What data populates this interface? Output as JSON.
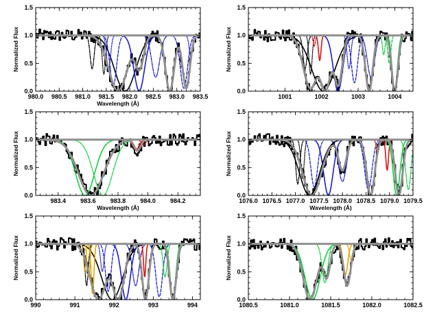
{
  "chart_data": [
    {
      "type": "line",
      "panel": "top-left",
      "xlim": [
        980.0,
        983.5
      ],
      "ylim": [
        0.0,
        1.5
      ],
      "xticks": [
        980.0,
        980.5,
        981.0,
        981.5,
        982.0,
        982.5,
        983.0,
        983.5
      ],
      "xtick_labels": [
        "980.0",
        "980.5",
        "981.0",
        "981.5",
        "982.0",
        "982.5",
        "983.0",
        "983.5"
      ],
      "yticks": [
        0.0,
        0.5,
        1.0,
        1.5
      ],
      "ytick_labels": [
        "0.0",
        "0.5",
        "1.0",
        "1.5"
      ],
      "xlabel": "Wavelength (Å)",
      "ylabel": "Normalized Flux",
      "continuum": 1.0,
      "colors": {
        "data": "#000000",
        "model": "#909090",
        "blue": "#1a1ad0",
        "black": "#000000"
      },
      "components": [
        {
          "color": "#000000",
          "style": "solid",
          "center": 981.9,
          "depth": 1.0,
          "width": 0.32
        },
        {
          "color": "#000000",
          "style": "dashdot",
          "center": 981.2,
          "depth": 0.6,
          "width": 0.06
        },
        {
          "color": "#000000",
          "style": "dotted",
          "center": 981.45,
          "depth": 0.7,
          "width": 0.05
        },
        {
          "color": "#1a1ad0",
          "style": "solid",
          "center": 982.2,
          "depth": 1.0,
          "width": 0.16
        },
        {
          "color": "#1a1ad0",
          "style": "dashed",
          "center": 981.65,
          "depth": 0.9,
          "width": 0.1
        },
        {
          "color": "#1a1ad0",
          "style": "dotted",
          "center": 981.55,
          "depth": 0.6,
          "width": 0.06
        },
        {
          "color": "#1a1ad0",
          "style": "dashdot",
          "center": 982.55,
          "depth": 0.75,
          "width": 0.12
        },
        {
          "color": "#1a1ad0",
          "style": "dashed",
          "center": 983.15,
          "depth": 0.95,
          "width": 0.11
        },
        {
          "color": "#1a1ad0",
          "style": "dotted",
          "center": 983.3,
          "depth": 0.4,
          "width": 0.05
        }
      ],
      "model_regions": [
        {
          "center": 981.75,
          "depth": 1.0,
          "width": 0.28
        },
        {
          "center": 982.2,
          "depth": 0.6,
          "width": 0.13
        },
        {
          "center": 982.85,
          "depth": 1.0,
          "width": 0.13
        },
        {
          "center": 983.2,
          "depth": 0.95,
          "width": 0.11
        }
      ]
    },
    {
      "type": "line",
      "panel": "top-right",
      "xlim": [
        1000.0,
        1004.5
      ],
      "ylim": [
        0.0,
        1.5
      ],
      "xticks": [
        1001,
        1002,
        1003,
        1004
      ],
      "xtick_labels": [
        "1001",
        "1002",
        "1003",
        "1004"
      ],
      "yticks": [
        0.0,
        0.5,
        1.0,
        1.5
      ],
      "ytick_labels": [
        "0.0",
        "0.5",
        "1.0",
        "1.5"
      ],
      "xlabel": "Wavelength (Å)",
      "ylabel": "Normalized Flux",
      "continuum": 1.0,
      "colors": {
        "data": "#000000",
        "model": "#909090",
        "blue": "#1a1ad0",
        "red": "#e01010",
        "green": "#10d040",
        "black": "#000000"
      },
      "components": [
        {
          "color": "#000000",
          "style": "solid",
          "center": 1002.05,
          "depth": 1.0,
          "width": 0.45
        },
        {
          "color": "#000000",
          "style": "dashdot",
          "center": 1001.55,
          "depth": 0.6,
          "width": 0.08
        },
        {
          "color": "#000000",
          "style": "dotted",
          "center": 1001.7,
          "depth": 0.7,
          "width": 0.06
        },
        {
          "color": "#e01010",
          "style": "solid",
          "center": 1001.95,
          "depth": 0.45,
          "width": 0.05
        },
        {
          "color": "#e01010",
          "style": "dashdot",
          "center": 1001.8,
          "depth": 0.2,
          "width": 0.04
        },
        {
          "color": "#1a1ad0",
          "style": "solid",
          "center": 1002.45,
          "depth": 1.0,
          "width": 0.18
        },
        {
          "color": "#1a1ad0",
          "style": "dashed",
          "center": 1002.9,
          "depth": 0.85,
          "width": 0.12
        },
        {
          "color": "#1a1ad0",
          "style": "dotted",
          "center": 1002.75,
          "depth": 0.6,
          "width": 0.07
        },
        {
          "color": "#1a1ad0",
          "style": "dashdot",
          "center": 1003.35,
          "depth": 0.75,
          "width": 0.14
        },
        {
          "color": "#10d040",
          "style": "solid",
          "center": 1004.0,
          "depth": 1.0,
          "width": 0.1
        },
        {
          "color": "#10d040",
          "style": "dashed",
          "center": 1003.85,
          "depth": 0.5,
          "width": 0.06
        },
        {
          "color": "#10d040",
          "style": "dashdot",
          "center": 1003.7,
          "depth": 0.35,
          "width": 0.05
        }
      ],
      "model_regions": [
        {
          "center": 1001.7,
          "depth": 0.95,
          "width": 0.28
        },
        {
          "center": 1002.1,
          "depth": 1.0,
          "width": 0.22
        },
        {
          "center": 1002.45,
          "depth": 0.9,
          "width": 0.16
        },
        {
          "center": 1003.3,
          "depth": 1.0,
          "width": 0.14
        },
        {
          "center": 1004.0,
          "depth": 1.0,
          "width": 0.12
        }
      ]
    },
    {
      "type": "line",
      "panel": "middle-left",
      "xlim": [
        983.25,
        984.35
      ],
      "ylim": [
        0.0,
        1.5
      ],
      "xticks": [
        983.4,
        983.6,
        983.8,
        984.0,
        984.2
      ],
      "xtick_labels": [
        "983.4",
        "983.6",
        "983.8",
        "984.0",
        "984.2"
      ],
      "yticks": [
        0.0,
        0.5,
        1.0,
        1.5
      ],
      "ytick_labels": [
        "0.0",
        "0.5",
        "1.0",
        "1.5"
      ],
      "xlabel": "Wavelength (Å)",
      "ylabel": "Normalized Flux",
      "continuum": 1.0,
      "colors": {
        "data": "#000000",
        "model": "#909090",
        "green": "#10d040",
        "red": "#e01010"
      },
      "components": [
        {
          "color": "#10d040",
          "style": "solid",
          "center": 983.58,
          "depth": 1.0,
          "width": 0.09
        },
        {
          "color": "#10d040",
          "style": "dashdot",
          "center": 983.7,
          "depth": 1.0,
          "width": 0.09
        },
        {
          "color": "#e01010",
          "style": "solid",
          "center": 983.92,
          "depth": 0.18,
          "width": 0.03
        },
        {
          "color": "#e01010",
          "style": "dashdot",
          "center": 983.97,
          "depth": 0.1,
          "width": 0.02
        }
      ],
      "model_regions": [
        {
          "center": 983.62,
          "depth": 1.0,
          "width": 0.12
        },
        {
          "center": 983.93,
          "depth": 0.2,
          "width": 0.03
        }
      ]
    },
    {
      "type": "line",
      "panel": "middle-right",
      "xlim": [
        1076.0,
        1079.5
      ],
      "ylim": [
        0.0,
        1.5
      ],
      "xticks": [
        1076.0,
        1076.5,
        1077.0,
        1077.5,
        1078.0,
        1078.5,
        1079.0,
        1079.5
      ],
      "xtick_labels": [
        "1076.0",
        "1076.5",
        "1077.0",
        "1077.5",
        "1078.0",
        "1078.5",
        "1079.0",
        "1079.5"
      ],
      "yticks": [
        0.0,
        0.5,
        1.0,
        1.5
      ],
      "ytick_labels": [
        "0.0",
        "0.5",
        "1.0",
        "1.5"
      ],
      "xlabel": "Wavelength (Å)",
      "ylabel": "Normalized Flux",
      "continuum": 1.0,
      "colors": {
        "data": "#000000",
        "model": "#909090",
        "blue": "#1a1ad0",
        "red": "#e01010",
        "green": "#10d040",
        "black": "#000000"
      },
      "components": [
        {
          "color": "#000000",
          "style": "solid",
          "center": 1077.3,
          "depth": 1.0,
          "width": 0.3
        },
        {
          "color": "#000000",
          "style": "dashdot",
          "center": 1077.05,
          "depth": 0.8,
          "width": 0.06
        },
        {
          "color": "#000000",
          "style": "dotted",
          "center": 1077.15,
          "depth": 0.7,
          "width": 0.05
        },
        {
          "color": "#1a1ad0",
          "style": "solid",
          "center": 1077.7,
          "depth": 1.0,
          "width": 0.14
        },
        {
          "color": "#1a1ad0",
          "style": "dashed",
          "center": 1077.4,
          "depth": 0.85,
          "width": 0.1
        },
        {
          "color": "#1a1ad0",
          "style": "dashdot",
          "center": 1078.0,
          "depth": 0.75,
          "width": 0.12
        },
        {
          "color": "#1a1ad0",
          "style": "dashed",
          "center": 1078.55,
          "depth": 0.9,
          "width": 0.11
        },
        {
          "color": "#e01010",
          "style": "solid",
          "center": 1078.95,
          "depth": 0.55,
          "width": 0.04
        },
        {
          "color": "#e01010",
          "style": "dashdot",
          "center": 1078.75,
          "depth": 0.25,
          "width": 0.04
        },
        {
          "color": "#10d040",
          "style": "solid",
          "center": 1079.15,
          "depth": 1.0,
          "width": 0.1
        },
        {
          "color": "#10d040",
          "style": "dashdot",
          "center": 1079.4,
          "depth": 0.9,
          "width": 0.08
        }
      ],
      "model_regions": [
        {
          "center": 1077.35,
          "depth": 1.0,
          "width": 0.28
        },
        {
          "center": 1078.0,
          "depth": 0.55,
          "width": 0.12
        },
        {
          "center": 1078.6,
          "depth": 1.0,
          "width": 0.12
        },
        {
          "center": 1079.2,
          "depth": 1.0,
          "width": 0.11
        }
      ]
    },
    {
      "type": "line",
      "panel": "bottom-left",
      "xlim": [
        990.0,
        994.2
      ],
      "ylim": [
        0.0,
        1.5
      ],
      "xticks": [
        990,
        991,
        992,
        993,
        994
      ],
      "xtick_labels": [
        "990",
        "991",
        "992",
        "993",
        "994"
      ],
      "yticks": [
        0.0,
        0.5,
        1.0,
        1.5
      ],
      "ytick_labels": [
        "0.0",
        "0.5",
        "1.0",
        "1.5"
      ],
      "xlabel": "Wavelength (Å)",
      "ylabel": "Normalized Flux",
      "continuum": 1.0,
      "colors": {
        "data": "#000000",
        "model": "#909090",
        "blue": "#1a1ad0",
        "red": "#e01010",
        "green": "#10d040",
        "orange": "#e8a400",
        "black": "#000000"
      },
      "components": [
        {
          "color": "#000000",
          "style": "solid",
          "center": 991.95,
          "depth": 1.0,
          "width": 0.38
        },
        {
          "color": "#000000",
          "style": "dashdot",
          "center": 991.3,
          "depth": 0.75,
          "width": 0.06
        },
        {
          "color": "#e8a400",
          "style": "solid",
          "center": 991.45,
          "depth": 0.9,
          "width": 0.05
        },
        {
          "color": "#e8a400",
          "style": "dashed",
          "center": 991.35,
          "depth": 0.6,
          "width": 0.05
        },
        {
          "color": "#e8a400",
          "style": "dotted",
          "center": 991.25,
          "depth": 0.5,
          "width": 0.04
        },
        {
          "color": "#1a1ad0",
          "style": "solid",
          "center": 992.3,
          "depth": 1.0,
          "width": 0.16
        },
        {
          "color": "#1a1ad0",
          "style": "dashed",
          "center": 991.85,
          "depth": 0.85,
          "width": 0.1
        },
        {
          "color": "#1a1ad0",
          "style": "dotted",
          "center": 991.7,
          "depth": 0.5,
          "width": 0.06
        },
        {
          "color": "#1a1ad0",
          "style": "dashdot",
          "center": 992.55,
          "depth": 0.75,
          "width": 0.12
        },
        {
          "color": "#1a1ad0",
          "style": "dashed",
          "center": 993.15,
          "depth": 0.95,
          "width": 0.12
        },
        {
          "color": "#e01010",
          "style": "solid",
          "center": 992.78,
          "depth": 0.6,
          "width": 0.04
        },
        {
          "color": "#10d040",
          "style": "solid",
          "center": 993.5,
          "depth": 1.0,
          "width": 0.1
        },
        {
          "color": "#10d040",
          "style": "dashdot",
          "center": 993.3,
          "depth": 0.6,
          "width": 0.07
        }
      ],
      "model_regions": [
        {
          "center": 991.6,
          "depth": 1.0,
          "width": 0.3
        },
        {
          "center": 992.1,
          "depth": 1.0,
          "width": 0.22
        },
        {
          "center": 992.8,
          "depth": 1.0,
          "width": 0.12
        },
        {
          "center": 993.5,
          "depth": 1.0,
          "width": 0.12
        }
      ]
    },
    {
      "type": "line",
      "panel": "bottom-right",
      "xlim": [
        1080.5,
        1082.5
      ],
      "ylim": [
        0.0,
        1.5
      ],
      "xticks": [
        1080.5,
        1081.0,
        1081.5,
        1082.0,
        1082.5
      ],
      "xtick_labels": [
        "1080.5",
        "1081.0",
        "1081.5",
        "1082.0",
        "1082.5"
      ],
      "yticks": [
        0.0,
        0.5,
        1.0,
        1.5
      ],
      "ytick_labels": [
        "0.0",
        "0.5",
        "1.0",
        "1.5"
      ],
      "xlabel": "Wavelength (Å)",
      "ylabel": "Normalized Flux",
      "continuum": 1.0,
      "colors": {
        "data": "#000000",
        "model": "#909090",
        "green": "#10d040",
        "orange": "#e8a400"
      },
      "components": [
        {
          "color": "#10d040",
          "style": "solid",
          "center": 1081.28,
          "depth": 1.0,
          "width": 0.13
        },
        {
          "color": "#10d040",
          "style": "dashdot",
          "center": 1081.43,
          "depth": 0.7,
          "width": 0.05
        },
        {
          "color": "#e8a400",
          "style": "solid",
          "center": 1081.68,
          "depth": 0.55,
          "width": 0.04
        },
        {
          "color": "#e8a400",
          "style": "dashdot",
          "center": 1081.75,
          "depth": 0.3,
          "width": 0.03
        }
      ],
      "model_regions": [
        {
          "center": 1081.25,
          "depth": 1.0,
          "width": 0.12
        },
        {
          "center": 1081.45,
          "depth": 0.6,
          "width": 0.06
        },
        {
          "center": 1081.7,
          "depth": 0.75,
          "width": 0.06
        }
      ]
    }
  ]
}
